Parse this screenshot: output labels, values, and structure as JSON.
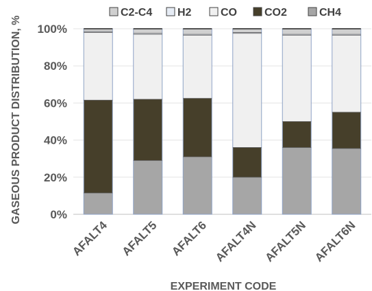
{
  "chart_data": {
    "type": "bar",
    "stacked": true,
    "percent_stacked": true,
    "categories": [
      "AFALT4",
      "AFALT5",
      "AFALT6",
      "AFALT4N",
      "AFALT5N",
      "AFALT6N"
    ],
    "series": [
      {
        "name": "CH4",
        "color": "#a6a6a6",
        "values": [
          11.5,
          29,
          31,
          20,
          36,
          35.5
        ]
      },
      {
        "name": "CO2",
        "color": "#463f2a",
        "values": [
          50,
          33,
          31.5,
          16,
          14,
          19.5
        ]
      },
      {
        "name": "CO",
        "color": "#f0f0f0",
        "values": [
          36.5,
          35,
          34,
          61.5,
          46.5,
          41.5
        ]
      },
      {
        "name": "H2",
        "color": "#e6ecf5",
        "values": [
          0.5,
          0.5,
          0.5,
          0.5,
          0.5,
          0.5
        ]
      },
      {
        "name": "C2-C4",
        "color": "#d0d0d0",
        "values": [
          1.5,
          2.5,
          3,
          2,
          3,
          3
        ]
      }
    ],
    "legend_order": [
      "C2-C4",
      "H2",
      "CO",
      "CO2",
      "CH4"
    ],
    "yticks": [
      "0%",
      "20%",
      "40%",
      "60%",
      "80%",
      "100%"
    ],
    "ylim": [
      0,
      100
    ],
    "xlabel": "EXPERIMENT CODE",
    "ylabel": "GASEOUS PRODUCT DISTRIBUTION, %",
    "legend_position": "top",
    "grid": true
  }
}
